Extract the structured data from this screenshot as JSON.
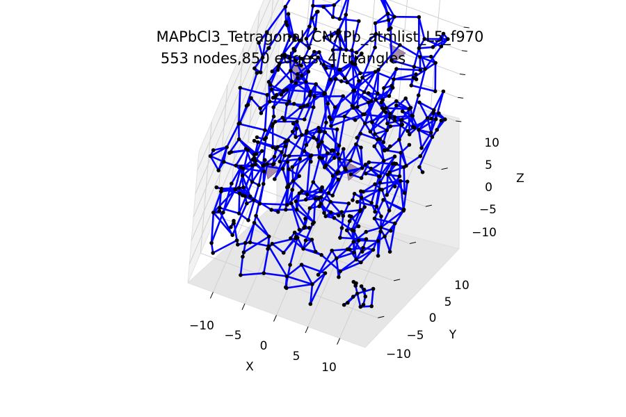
{
  "chart_data": {
    "type": "scatter",
    "projection": "3d",
    "title": "MAPbCl3_Tetragonal_CNXPb_atmlist_L5_f970",
    "subtitle": "553 nodes,850 edges, 4 triangles",
    "xlabel": "X",
    "ylabel": "Y",
    "zlabel": "Z",
    "xticks": [
      "−10",
      "−5",
      "0",
      "5",
      "10"
    ],
    "yticks": [
      "−10",
      "−5",
      "0",
      "5",
      "10"
    ],
    "zticks": [
      "−10",
      "−5",
      "0",
      "5",
      "10"
    ],
    "xlim": [
      -14,
      14
    ],
    "ylim": [
      -14,
      14
    ],
    "zlim": [
      -14,
      14
    ],
    "grid": true,
    "node_color": "#000000",
    "edge_color": "#0000ff",
    "triangle_color": "#8b6a8f",
    "triangle_count": 4,
    "node_count": 553,
    "edge_count": 850
  }
}
